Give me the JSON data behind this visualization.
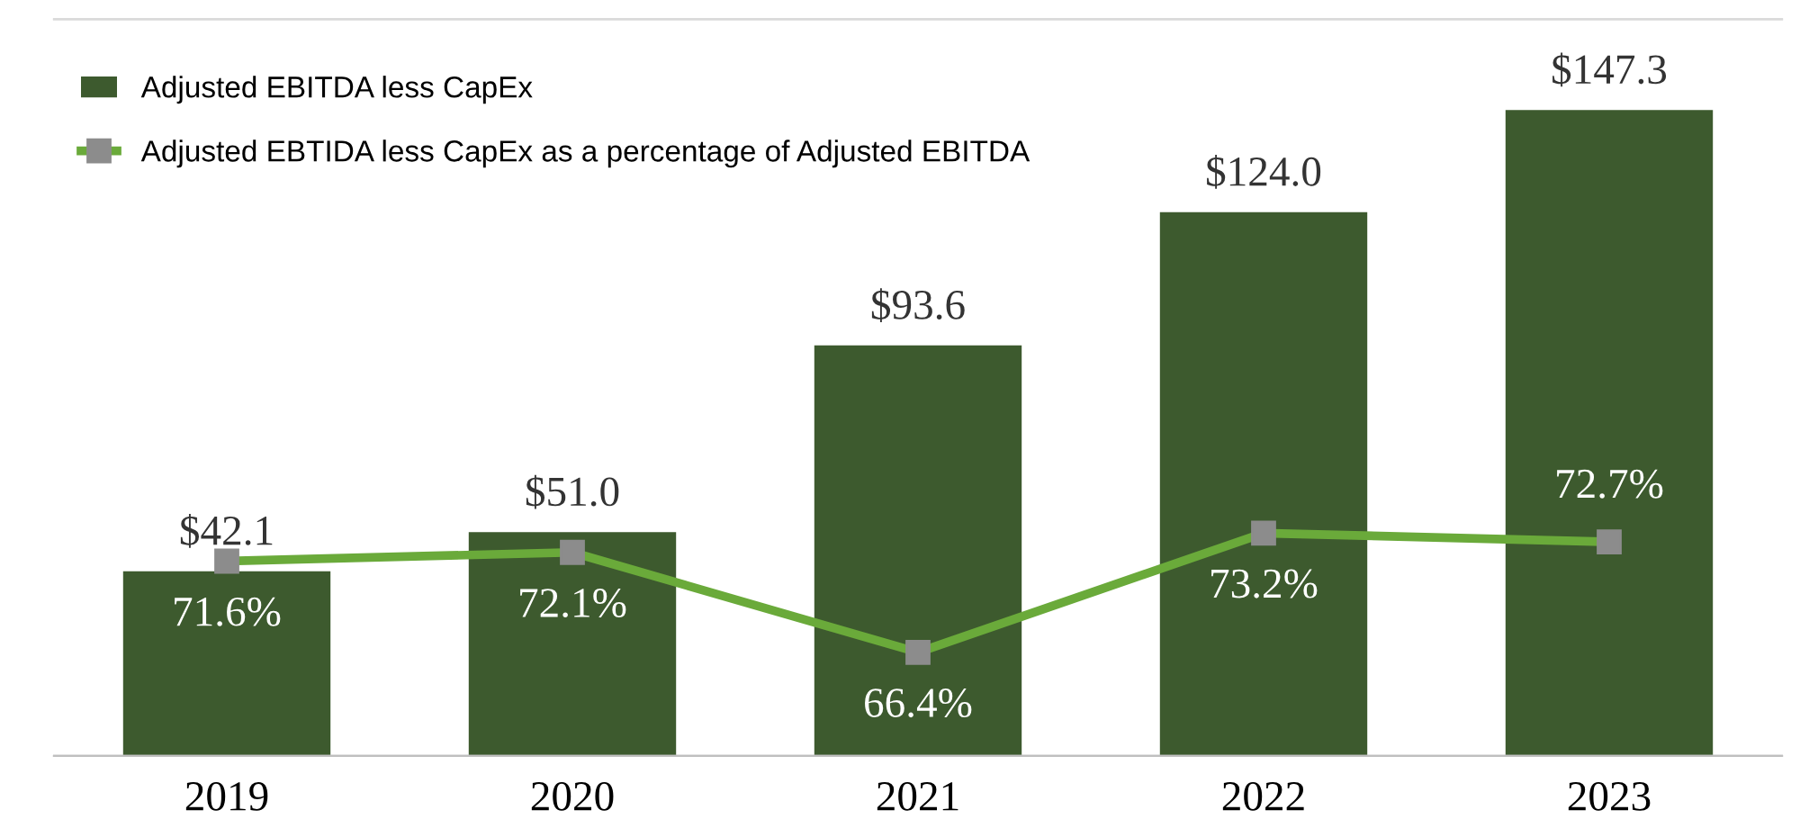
{
  "chart_data": {
    "type": "bar",
    "categories": [
      "2019",
      "2020",
      "2021",
      "2022",
      "2023"
    ],
    "series": [
      {
        "name": "Adjusted EBITDA less CapEx",
        "color": "#3d5a2e",
        "values": [
          42.1,
          51.0,
          93.6,
          124.0,
          147.3
        ],
        "value_labels": [
          "$42.1",
          "$51.0",
          "$93.6",
          "$124.0",
          "$147.3"
        ]
      },
      {
        "name": "Adjusted EBTIDA less CapEx as a percentage of Adjusted EBITDA",
        "type": "line",
        "axis": "y2",
        "color": "#6aaa3a",
        "marker": "square",
        "values": [
          71.6,
          72.1,
          66.4,
          73.2,
          72.7
        ],
        "value_labels": [
          "71.6%",
          "72.1%",
          "66.4%",
          "73.2%",
          "72.7%"
        ]
      }
    ],
    "ylim": [
      0,
      168
    ],
    "y2lim": [
      60.5,
      102.5
    ],
    "tick_labels": "x",
    "legend": "top left",
    "grid": false
  }
}
